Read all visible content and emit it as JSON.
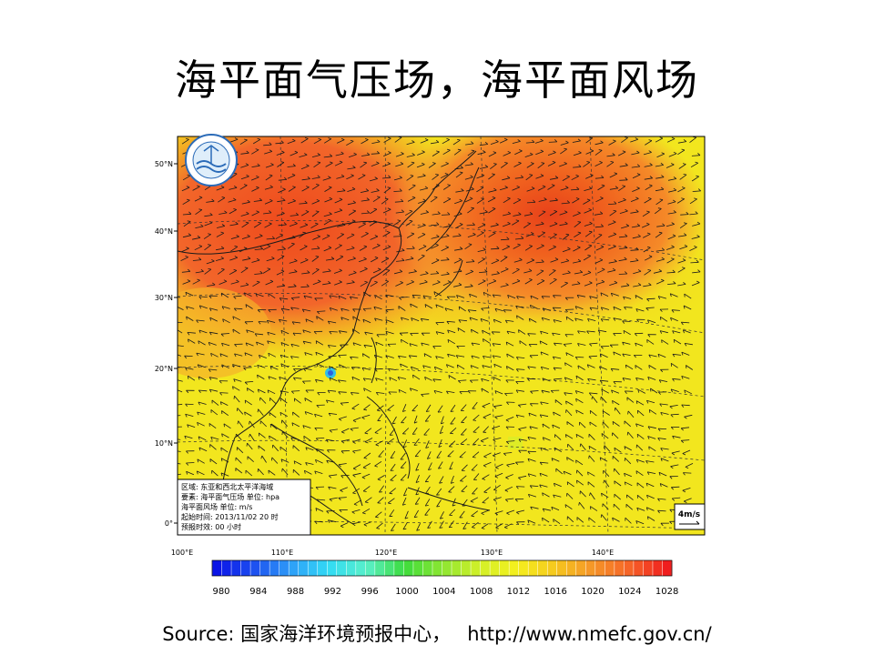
{
  "slide": {
    "title": "海平面气压场，海平面风场"
  },
  "map": {
    "latitude_labels": [
      "50°N",
      "40°N",
      "30°N",
      "20°N",
      "10°N",
      "0°"
    ],
    "longitude_labels": [
      "100°E",
      "110°E",
      "120°E",
      "130°E",
      "140°E"
    ],
    "info_box": {
      "lines": [
        "区域: 东亚和西北太平洋海域",
        "要素: 海平面气压场  单位: hpa",
        "海平面风场    单位: m/s",
        "起始时间: 2013/11/02 20  时",
        "预报时效:      00      小时"
      ]
    },
    "wind_scale_label": "4m/s",
    "colorbar": {
      "ticks": [
        "980",
        "984",
        "988",
        "992",
        "996",
        "1000",
        "1004",
        "1008",
        "1012",
        "1016",
        "1020",
        "1024",
        "1028"
      ],
      "colors": [
        "#0a14e6",
        "#1e50f0",
        "#2ea0f8",
        "#33dcf4",
        "#5af0c8",
        "#3cdc3c",
        "#8ce632",
        "#d2f028",
        "#f5f01e",
        "#f5c81e",
        "#f59628",
        "#f56428",
        "#f01e1e"
      ]
    },
    "colors": {
      "ocean_base": "#f2e61e",
      "high_pressure": "#f0551e",
      "mid_pressure": "#f58c28"
    }
  },
  "footer": {
    "source_text": "Source: 国家海洋环境预报中心，",
    "url": "http://www.nmefc.gov.cn/"
  }
}
